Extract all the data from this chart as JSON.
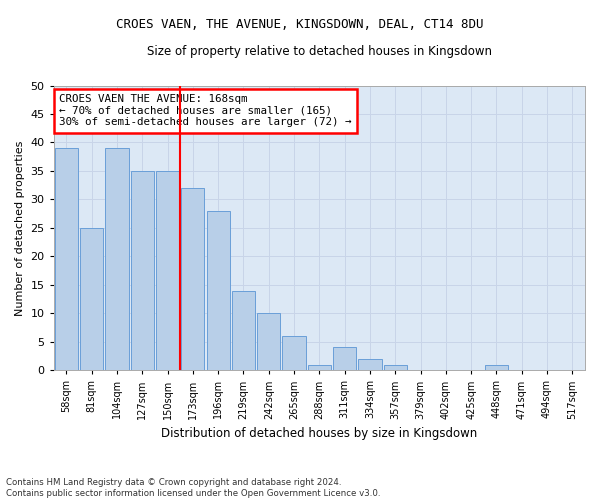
{
  "title": "CROES VAEN, THE AVENUE, KINGSDOWN, DEAL, CT14 8DU",
  "subtitle": "Size of property relative to detached houses in Kingsdown",
  "xlabel": "Distribution of detached houses by size in Kingsdown",
  "ylabel": "Number of detached properties",
  "bar_labels": [
    "58sqm",
    "81sqm",
    "104sqm",
    "127sqm",
    "150sqm",
    "173sqm",
    "196sqm",
    "219sqm",
    "242sqm",
    "265sqm",
    "288sqm",
    "311sqm",
    "334sqm",
    "357sqm",
    "379sqm",
    "402sqm",
    "425sqm",
    "448sqm",
    "471sqm",
    "494sqm",
    "517sqm"
  ],
  "bar_values": [
    39,
    25,
    39,
    35,
    35,
    32,
    28,
    14,
    10,
    6,
    1,
    4,
    2,
    1,
    0,
    0,
    0,
    1,
    0,
    0,
    0
  ],
  "bar_color": "#b8cfe8",
  "bar_edge_color": "#6a9fd8",
  "annotation_text": "CROES VAEN THE AVENUE: 168sqm\n← 70% of detached houses are smaller (165)\n30% of semi-detached houses are larger (72) →",
  "annotation_box_color": "white",
  "annotation_box_edge_color": "red",
  "vline_color": "red",
  "footnote": "Contains HM Land Registry data © Crown copyright and database right 2024.\nContains public sector information licensed under the Open Government Licence v3.0.",
  "ylim": [
    0,
    50
  ],
  "yticks": [
    0,
    5,
    10,
    15,
    20,
    25,
    30,
    35,
    40,
    45,
    50
  ],
  "grid_color": "#c8d4e8",
  "bg_color": "#dce8f5"
}
